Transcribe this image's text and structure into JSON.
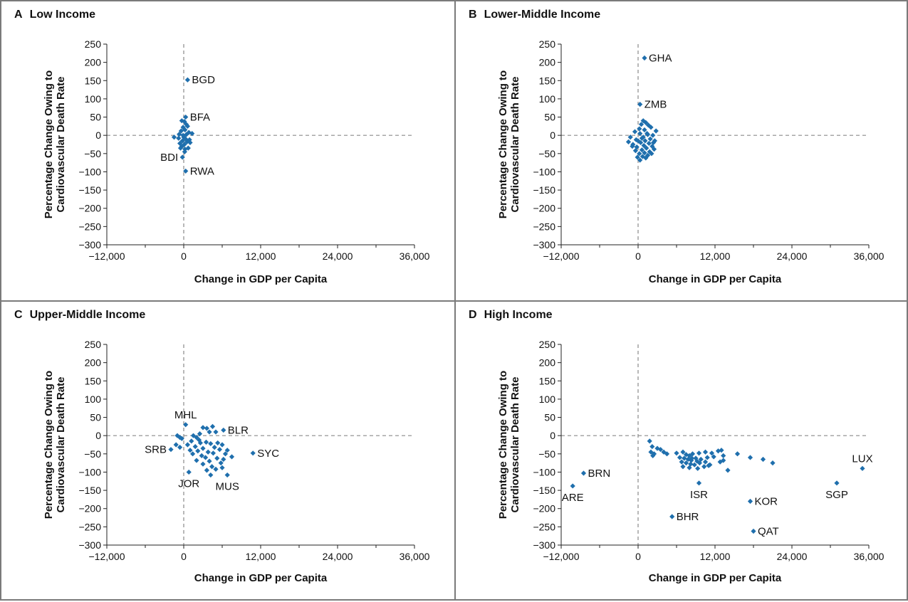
{
  "colors": {
    "point": "#1f6fad",
    "frame": "#7a7a7a",
    "zero_line": "#8a8a8a",
    "axis": "#222222"
  },
  "chart_data": [
    {
      "id": "A",
      "letter": "A",
      "title": "Low Income",
      "type": "scatter",
      "xlabel": "Change in GDP per Capita",
      "ylabel": [
        "Percentage Change Owing to",
        "Cardiovascular Death Rate"
      ],
      "xlim": [
        -12000,
        36000
      ],
      "ylim": [
        -300,
        250
      ],
      "xticks": [
        -12000,
        0,
        12000,
        24000,
        36000
      ],
      "xtick_labels": [
        "−12,000",
        "0",
        "12,000",
        "24,000",
        "36,000"
      ],
      "yticks": [
        250,
        200,
        150,
        100,
        50,
        0,
        -50,
        -100,
        -150,
        -200,
        -250,
        -300
      ],
      "ytick_labels": [
        "250",
        "200",
        "150",
        "100",
        "50",
        "0",
        "−50",
        "−100",
        "−150",
        "−200",
        "−250",
        "−300"
      ],
      "labeled_points": [
        {
          "label": "BGD",
          "x": 600,
          "y": 152,
          "side": "right"
        },
        {
          "label": "BFA",
          "x": 300,
          "y": 50,
          "side": "right"
        },
        {
          "label": "BDI",
          "x": -200,
          "y": -60,
          "side": "left"
        },
        {
          "label": "RWA",
          "x": 300,
          "y": -98,
          "side": "right"
        }
      ],
      "points": [
        [
          -300,
          40
        ],
        [
          100,
          38
        ],
        [
          400,
          30
        ],
        [
          -100,
          22
        ],
        [
          600,
          25
        ],
        [
          200,
          15
        ],
        [
          -400,
          12
        ],
        [
          800,
          8
        ],
        [
          1300,
          5
        ],
        [
          -1500,
          -5
        ],
        [
          -800,
          -8
        ],
        [
          0,
          -5
        ],
        [
          300,
          -10
        ],
        [
          -200,
          -15
        ],
        [
          500,
          -18
        ],
        [
          -600,
          -22
        ],
        [
          100,
          -25
        ],
        [
          -300,
          -30
        ],
        [
          700,
          -35
        ],
        [
          200,
          -38
        ],
        [
          1000,
          -20
        ],
        [
          -100,
          0
        ],
        [
          400,
          2
        ],
        [
          -700,
          3
        ],
        [
          900,
          -12
        ],
        [
          -500,
          -35
        ],
        [
          150,
          -45
        ]
      ]
    },
    {
      "id": "B",
      "letter": "B",
      "title": "Lower-Middle Income",
      "type": "scatter",
      "xlabel": "Change in GDP per Capita",
      "ylabel": [
        "Percentage Change Owing to",
        "Cardiovascular Death Rate"
      ],
      "xlim": [
        -12000,
        36000
      ],
      "ylim": [
        -300,
        250
      ],
      "xticks": [
        -12000,
        0,
        12000,
        24000,
        36000
      ],
      "xtick_labels": [
        "−12,000",
        "0",
        "12,000",
        "24,000",
        "36,000"
      ],
      "yticks": [
        250,
        200,
        150,
        100,
        50,
        0,
        -50,
        -100,
        -150,
        -200,
        -250,
        -300
      ],
      "ytick_labels": [
        "250",
        "200",
        "150",
        "100",
        "50",
        "0",
        "−50",
        "−100",
        "−150",
        "−200",
        "−250",
        "−300"
      ],
      "labeled_points": [
        {
          "label": "GHA",
          "x": 1000,
          "y": 212,
          "side": "right"
        },
        {
          "label": "ZMB",
          "x": 300,
          "y": 85,
          "side": "right"
        }
      ],
      "points": [
        [
          800,
          40
        ],
        [
          1200,
          35
        ],
        [
          500,
          30
        ],
        [
          1600,
          28
        ],
        [
          2000,
          22
        ],
        [
          200,
          18
        ],
        [
          1000,
          15
        ],
        [
          2800,
          12
        ],
        [
          -500,
          10
        ],
        [
          300,
          5
        ],
        [
          1500,
          2
        ],
        [
          2300,
          0
        ],
        [
          -1200,
          -5
        ],
        [
          600,
          -8
        ],
        [
          1900,
          -10
        ],
        [
          -300,
          -12
        ],
        [
          1100,
          -15
        ],
        [
          2600,
          -15
        ],
        [
          -1500,
          -18
        ],
        [
          400,
          -20
        ],
        [
          1700,
          -22
        ],
        [
          -800,
          -25
        ],
        [
          900,
          -28
        ],
        [
          2200,
          -30
        ],
        [
          -200,
          -32
        ],
        [
          1300,
          -35
        ],
        [
          2500,
          -38
        ],
        [
          600,
          -40
        ],
        [
          -400,
          -42
        ],
        [
          1800,
          -45
        ],
        [
          1000,
          -48
        ],
        [
          200,
          -50
        ],
        [
          1500,
          -55
        ],
        [
          700,
          -58
        ],
        [
          -100,
          -60
        ],
        [
          1200,
          -62
        ],
        [
          300,
          -68
        ],
        [
          2100,
          -50
        ],
        [
          -900,
          -30
        ],
        [
          2400,
          -20
        ],
        [
          1400,
          5
        ],
        [
          800,
          -5
        ],
        [
          0,
          -15
        ]
      ]
    },
    {
      "id": "C",
      "letter": "C",
      "title": "Upper-Middle Income",
      "type": "scatter",
      "xlabel": "Change in GDP per Capita",
      "ylabel": [
        "Percentage Change Owing to",
        "Cardiovascular Death Rate"
      ],
      "xlim": [
        -12000,
        36000
      ],
      "ylim": [
        -300,
        250
      ],
      "xticks": [
        -12000,
        0,
        12000,
        24000,
        36000
      ],
      "xtick_labels": [
        "−12,000",
        "0",
        "12,000",
        "24,000",
        "36,000"
      ],
      "yticks": [
        250,
        200,
        150,
        100,
        50,
        0,
        -50,
        -100,
        -150,
        -200,
        -250,
        -300
      ],
      "ytick_labels": [
        "250",
        "200",
        "150",
        "100",
        "50",
        "0",
        "−50",
        "−100",
        "−150",
        "−200",
        "−250",
        "−300"
      ],
      "labeled_points": [
        {
          "label": "MHL",
          "x": 300,
          "y": 30,
          "side": "above"
        },
        {
          "label": "BLR",
          "x": 6200,
          "y": 15,
          "side": "right"
        },
        {
          "label": "SRB",
          "x": -2000,
          "y": -38,
          "side": "left"
        },
        {
          "label": "SYC",
          "x": 10800,
          "y": -48,
          "side": "right"
        },
        {
          "label": "JOR",
          "x": 800,
          "y": -100,
          "side": "below"
        },
        {
          "label": "MUS",
          "x": 6800,
          "y": -108,
          "side": "below"
        }
      ],
      "points": [
        [
          -1000,
          0
        ],
        [
          -600,
          -5
        ],
        [
          -300,
          -8
        ],
        [
          1500,
          0
        ],
        [
          2500,
          5
        ],
        [
          3000,
          22
        ],
        [
          3600,
          20
        ],
        [
          4500,
          25
        ],
        [
          4000,
          10
        ],
        [
          5000,
          10
        ],
        [
          2000,
          -5
        ],
        [
          1200,
          -15
        ],
        [
          2600,
          -20
        ],
        [
          3500,
          -18
        ],
        [
          4200,
          -22
        ],
        [
          5300,
          -20
        ],
        [
          6000,
          -25
        ],
        [
          600,
          -25
        ],
        [
          1800,
          -30
        ],
        [
          3000,
          -35
        ],
        [
          4800,
          -32
        ],
        [
          5600,
          -38
        ],
        [
          6800,
          -40
        ],
        [
          2200,
          -42
        ],
        [
          3800,
          -45
        ],
        [
          4600,
          -48
        ],
        [
          7500,
          -58
        ],
        [
          1400,
          -50
        ],
        [
          2800,
          -55
        ],
        [
          3400,
          -60
        ],
        [
          5200,
          -62
        ],
        [
          6200,
          -65
        ],
        [
          2000,
          -68
        ],
        [
          4000,
          -70
        ],
        [
          5800,
          -75
        ],
        [
          3000,
          -78
        ],
        [
          4400,
          -85
        ],
        [
          5000,
          -92
        ],
        [
          3600,
          -95
        ],
        [
          6000,
          -88
        ],
        [
          4200,
          -108
        ],
        [
          -1200,
          -25
        ],
        [
          -600,
          -32
        ],
        [
          2400,
          -12
        ],
        [
          1000,
          -40
        ],
        [
          6500,
          -50
        ]
      ]
    },
    {
      "id": "D",
      "letter": "D",
      "title": "High Income",
      "type": "scatter",
      "xlabel": "Change in GDP per Capita",
      "ylabel": [
        "Percentage Change Owing to",
        "Cardiovascular Death Rate"
      ],
      "xlim": [
        -12000,
        36000
      ],
      "ylim": [
        -300,
        250
      ],
      "xticks": [
        -12000,
        0,
        12000,
        24000,
        36000
      ],
      "xtick_labels": [
        "−12,000",
        "0",
        "12,000",
        "24,000",
        "36,000"
      ],
      "yticks": [
        250,
        200,
        150,
        100,
        50,
        0,
        -50,
        -100,
        -150,
        -200,
        -250,
        -300
      ],
      "ytick_labels": [
        "250",
        "200",
        "150",
        "100",
        "50",
        "0",
        "−50",
        "−100",
        "−150",
        "−200",
        "−250",
        "−300"
      ],
      "labeled_points": [
        {
          "label": "LUX",
          "x": 35000,
          "y": -90,
          "side": "above"
        },
        {
          "label": "BRN",
          "x": -8500,
          "y": -103,
          "side": "right"
        },
        {
          "label": "ARE",
          "x": -10200,
          "y": -138,
          "side": "below"
        },
        {
          "label": "SGP",
          "x": 31000,
          "y": -130,
          "side": "below"
        },
        {
          "label": "ISR",
          "x": 9500,
          "y": -130,
          "side": "below"
        },
        {
          "label": "KOR",
          "x": 17500,
          "y": -180,
          "side": "right"
        },
        {
          "label": "BHR",
          "x": 5300,
          "y": -222,
          "side": "right"
        },
        {
          "label": "QAT",
          "x": 18000,
          "y": -262,
          "side": "right"
        }
      ],
      "points": [
        [
          1800,
          -15
        ],
        [
          2200,
          -30
        ],
        [
          3000,
          -35
        ],
        [
          3500,
          -38
        ],
        [
          2000,
          -45
        ],
        [
          2500,
          -50
        ],
        [
          4000,
          -45
        ],
        [
          4500,
          -50
        ],
        [
          2300,
          -55
        ],
        [
          6000,
          -48
        ],
        [
          7000,
          -45
        ],
        [
          7500,
          -52
        ],
        [
          8000,
          -55
        ],
        [
          8500,
          -50
        ],
        [
          9500,
          -48
        ],
        [
          10500,
          -45
        ],
        [
          11500,
          -48
        ],
        [
          12500,
          -42
        ],
        [
          13000,
          -40
        ],
        [
          6500,
          -60
        ],
        [
          7200,
          -62
        ],
        [
          7800,
          -65
        ],
        [
          8300,
          -68
        ],
        [
          9000,
          -62
        ],
        [
          9800,
          -65
        ],
        [
          10800,
          -60
        ],
        [
          11800,
          -58
        ],
        [
          13300,
          -55
        ],
        [
          15500,
          -50
        ],
        [
          6800,
          -72
        ],
        [
          7500,
          -75
        ],
        [
          8200,
          -78
        ],
        [
          8800,
          -80
        ],
        [
          9600,
          -75
        ],
        [
          10500,
          -72
        ],
        [
          11200,
          -80
        ],
        [
          12800,
          -72
        ],
        [
          13300,
          -68
        ],
        [
          7000,
          -85
        ],
        [
          8000,
          -88
        ],
        [
          9300,
          -90
        ],
        [
          10300,
          -85
        ],
        [
          11000,
          -82
        ],
        [
          14000,
          -95
        ],
        [
          8400,
          -62
        ],
        [
          9200,
          -70
        ],
        [
          17500,
          -60
        ],
        [
          19500,
          -65
        ],
        [
          21000,
          -75
        ]
      ]
    }
  ]
}
